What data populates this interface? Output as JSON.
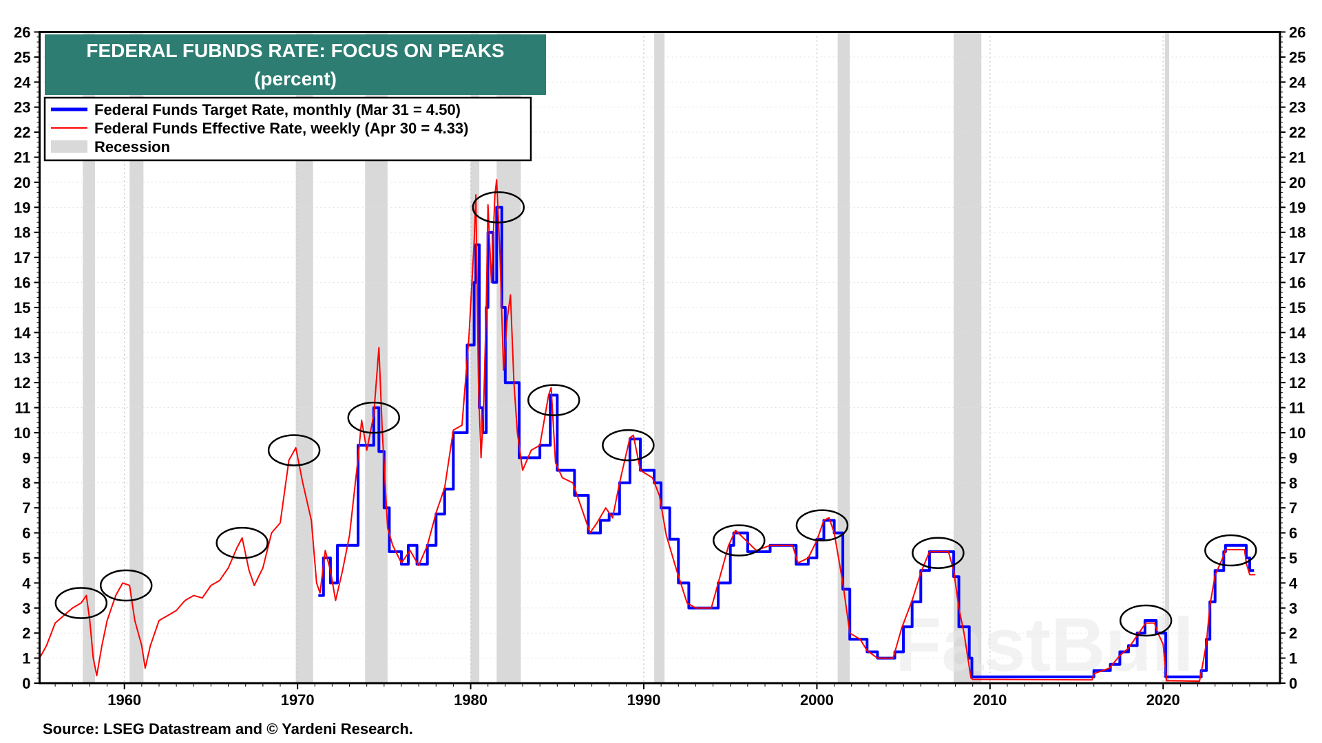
{
  "chart_data": {
    "type": "line",
    "title": "FEDERAL FUBNDS RATE: FOCUS ON PEAKS",
    "subtitle": "(percent)",
    "xlabel": "",
    "ylabel": "",
    "xlim": [
      1955.1,
      2026.75
    ],
    "ylim": [
      0,
      26
    ],
    "x_ticks": [
      1960,
      1970,
      1980,
      1990,
      2000,
      2010,
      2020
    ],
    "y_ticks": [
      0,
      1,
      2,
      3,
      4,
      5,
      6,
      7,
      8,
      9,
      10,
      11,
      12,
      13,
      14,
      15,
      16,
      17,
      18,
      19,
      20,
      21,
      22,
      23,
      24,
      25,
      26
    ],
    "y_axis_sides": "both",
    "grid": true,
    "legend_placement": "top-left",
    "source": "Source: LSEG Datastream and © Yardeni Research.",
    "watermark": "FastBull",
    "colors": {
      "target": "#0000ff",
      "effective": "#ff0000",
      "recession": "#d9d9d9",
      "title_bg": "#2e7d72",
      "circle": "#000000"
    },
    "recession_label": "Recession",
    "recessions": [
      [
        1957.6,
        1958.3
      ],
      [
        1960.3,
        1961.1
      ],
      [
        1969.9,
        1970.9
      ],
      [
        1973.9,
        1975.2
      ],
      [
        1980.0,
        1980.5
      ],
      [
        1981.5,
        1982.9
      ],
      [
        1990.6,
        1991.2
      ],
      [
        2001.2,
        2001.9
      ],
      [
        2007.9,
        2009.5
      ],
      [
        2020.1,
        2020.35
      ]
    ],
    "peaks_circled": [
      [
        1957.5,
        3.2
      ],
      [
        1960.1,
        3.9
      ],
      [
        1966.8,
        5.6
      ],
      [
        1969.8,
        9.3
      ],
      [
        1974.4,
        10.6
      ],
      [
        1981.6,
        19.0
      ],
      [
        1984.8,
        11.3
      ],
      [
        1989.1,
        9.5
      ],
      [
        1995.5,
        5.7
      ],
      [
        2000.3,
        6.3
      ],
      [
        2007.0,
        5.2
      ],
      [
        2019.0,
        2.5
      ],
      [
        2023.9,
        5.3
      ]
    ],
    "series": [
      {
        "name": "Federal Funds Effective Rate, weekly (Apr 30 = 4.33)",
        "key": "effective",
        "points": [
          [
            1955.1,
            1.0
          ],
          [
            1955.5,
            1.5
          ],
          [
            1956,
            2.4
          ],
          [
            1956.5,
            2.7
          ],
          [
            1957,
            3.0
          ],
          [
            1957.5,
            3.2
          ],
          [
            1957.8,
            3.5
          ],
          [
            1958.0,
            2.5
          ],
          [
            1958.2,
            1.0
          ],
          [
            1958.4,
            0.3
          ],
          [
            1958.7,
            1.5
          ],
          [
            1959,
            2.5
          ],
          [
            1959.5,
            3.5
          ],
          [
            1959.9,
            4.0
          ],
          [
            1960.3,
            3.9
          ],
          [
            1960.6,
            2.5
          ],
          [
            1961,
            1.5
          ],
          [
            1961.2,
            0.6
          ],
          [
            1961.5,
            1.5
          ],
          [
            1962,
            2.5
          ],
          [
            1962.5,
            2.7
          ],
          [
            1963,
            2.9
          ],
          [
            1963.5,
            3.3
          ],
          [
            1964,
            3.5
          ],
          [
            1964.5,
            3.4
          ],
          [
            1965,
            3.9
          ],
          [
            1965.5,
            4.1
          ],
          [
            1966,
            4.6
          ],
          [
            1966.5,
            5.4
          ],
          [
            1966.8,
            5.8
          ],
          [
            1967.2,
            4.5
          ],
          [
            1967.5,
            3.9
          ],
          [
            1968,
            4.6
          ],
          [
            1968.5,
            6.0
          ],
          [
            1969,
            6.4
          ],
          [
            1969.5,
            8.9
          ],
          [
            1969.9,
            9.4
          ],
          [
            1970.3,
            8.0
          ],
          [
            1970.8,
            6.5
          ],
          [
            1971.1,
            4.0
          ],
          [
            1971.3,
            3.6
          ],
          [
            1971.6,
            5.3
          ],
          [
            1971.9,
            4.5
          ],
          [
            1972.2,
            3.3
          ],
          [
            1972.6,
            4.5
          ],
          [
            1973,
            5.9
          ],
          [
            1973.5,
            9.0
          ],
          [
            1973.7,
            10.5
          ],
          [
            1974,
            9.3
          ],
          [
            1974.4,
            10.7
          ],
          [
            1974.6,
            12.5
          ],
          [
            1974.7,
            13.4
          ],
          [
            1974.9,
            10.0
          ],
          [
            1975.2,
            6.2
          ],
          [
            1975.5,
            5.5
          ],
          [
            1976,
            4.8
          ],
          [
            1976.5,
            5.3
          ],
          [
            1977,
            4.7
          ],
          [
            1977.5,
            5.5
          ],
          [
            1978,
            6.8
          ],
          [
            1978.5,
            7.8
          ],
          [
            1979,
            10.1
          ],
          [
            1979.5,
            10.3
          ],
          [
            1979.9,
            13.8
          ],
          [
            1980.2,
            17.6
          ],
          [
            1980.3,
            19.5
          ],
          [
            1980.45,
            12.0
          ],
          [
            1980.6,
            9.0
          ],
          [
            1980.75,
            11.0
          ],
          [
            1980.9,
            15.0
          ],
          [
            1981.0,
            19.1
          ],
          [
            1981.2,
            16.0
          ],
          [
            1981.4,
            19.5
          ],
          [
            1981.5,
            20.1
          ],
          [
            1981.7,
            17.0
          ],
          [
            1981.9,
            12.5
          ],
          [
            1982.1,
            14.5
          ],
          [
            1982.3,
            15.5
          ],
          [
            1982.5,
            12.0
          ],
          [
            1982.7,
            10.0
          ],
          [
            1982.9,
            9.0
          ],
          [
            1983,
            8.5
          ],
          [
            1983.5,
            9.3
          ],
          [
            1984,
            9.5
          ],
          [
            1984.5,
            11.5
          ],
          [
            1984.65,
            11.8
          ],
          [
            1984.9,
            8.8
          ],
          [
            1985.3,
            8.2
          ],
          [
            1985.9,
            8.0
          ],
          [
            1986.5,
            6.8
          ],
          [
            1986.9,
            6.0
          ],
          [
            1987.3,
            6.4
          ],
          [
            1987.8,
            7.0
          ],
          [
            1988.2,
            6.6
          ],
          [
            1988.6,
            8.0
          ],
          [
            1989.2,
            9.8
          ],
          [
            1989.4,
            9.9
          ],
          [
            1989.8,
            8.5
          ],
          [
            1990.5,
            8.2
          ],
          [
            1990.9,
            7.5
          ],
          [
            1991.3,
            5.9
          ],
          [
            1991.9,
            4.5
          ],
          [
            1992.5,
            3.2
          ],
          [
            1993,
            3.0
          ],
          [
            1993.9,
            3.0
          ],
          [
            1994.3,
            4.0
          ],
          [
            1994.9,
            5.5
          ],
          [
            1995.3,
            6.1
          ],
          [
            1995.9,
            5.7
          ],
          [
            1996.5,
            5.3
          ],
          [
            1997.3,
            5.5
          ],
          [
            1998.6,
            5.5
          ],
          [
            1998.9,
            4.8
          ],
          [
            1999.5,
            5.0
          ],
          [
            2000,
            5.7
          ],
          [
            2000.4,
            6.5
          ],
          [
            2000.7,
            6.6
          ],
          [
            2001.0,
            6.0
          ],
          [
            2001.5,
            4.0
          ],
          [
            2001.9,
            2.0
          ],
          [
            2002.5,
            1.75
          ],
          [
            2002.9,
            1.3
          ],
          [
            2003.5,
            1.0
          ],
          [
            2004.4,
            1.0
          ],
          [
            2004.9,
            2.2
          ],
          [
            2005.5,
            3.3
          ],
          [
            2006,
            4.4
          ],
          [
            2006.5,
            5.25
          ],
          [
            2007.6,
            5.25
          ],
          [
            2007.9,
            4.5
          ],
          [
            2008.2,
            3.0
          ],
          [
            2008.5,
            2.0
          ],
          [
            2008.9,
            0.2
          ],
          [
            2009,
            0.15
          ],
          [
            2015.9,
            0.13
          ],
          [
            2016.0,
            0.38
          ],
          [
            2016.9,
            0.6
          ],
          [
            2017.5,
            1.1
          ],
          [
            2018,
            1.4
          ],
          [
            2018.5,
            1.9
          ],
          [
            2019,
            2.4
          ],
          [
            2019.5,
            2.4
          ],
          [
            2019.7,
            2.0
          ],
          [
            2020,
            1.55
          ],
          [
            2020.2,
            0.1
          ],
          [
            2022.1,
            0.08
          ],
          [
            2022.3,
            0.8
          ],
          [
            2022.5,
            1.6
          ],
          [
            2022.7,
            3.1
          ],
          [
            2023,
            4.3
          ],
          [
            2023.5,
            5.1
          ],
          [
            2023.6,
            5.33
          ],
          [
            2024.7,
            5.33
          ],
          [
            2024.8,
            4.8
          ],
          [
            2025,
            4.33
          ],
          [
            2025.33,
            4.33
          ]
        ]
      },
      {
        "name": "Federal Funds Target Rate, monthly (Mar 31 = 4.50)",
        "key": "target",
        "points": [
          [
            1971.2,
            3.5
          ],
          [
            1971.5,
            5.0
          ],
          [
            1971.9,
            4.0
          ],
          [
            1972.3,
            5.5
          ],
          [
            1973.0,
            5.5
          ],
          [
            1973.5,
            9.5
          ],
          [
            1974.0,
            9.5
          ],
          [
            1974.4,
            11.0
          ],
          [
            1974.7,
            9.25
          ],
          [
            1975.0,
            7.0
          ],
          [
            1975.3,
            5.25
          ],
          [
            1976.0,
            4.75
          ],
          [
            1976.4,
            5.5
          ],
          [
            1976.9,
            4.75
          ],
          [
            1977.5,
            5.5
          ],
          [
            1978.0,
            6.75
          ],
          [
            1978.5,
            7.75
          ],
          [
            1979.0,
            10.0
          ],
          [
            1979.8,
            13.5
          ],
          [
            1980.2,
            16.0
          ],
          [
            1980.3,
            17.5
          ],
          [
            1980.5,
            11.0
          ],
          [
            1980.7,
            10.0
          ],
          [
            1980.9,
            15.0
          ],
          [
            1981.0,
            18.0
          ],
          [
            1981.3,
            16.0
          ],
          [
            1981.5,
            19.0
          ],
          [
            1981.8,
            15.0
          ],
          [
            1982.0,
            12.0
          ],
          [
            1982.5,
            12.0
          ],
          [
            1982.8,
            9.0
          ],
          [
            1983.5,
            9.0
          ],
          [
            1984.0,
            9.5
          ],
          [
            1984.6,
            11.5
          ],
          [
            1985.0,
            8.5
          ],
          [
            1986.0,
            7.5
          ],
          [
            1986.8,
            6.0
          ],
          [
            1987.5,
            6.5
          ],
          [
            1988.0,
            6.75
          ],
          [
            1988.6,
            8.0
          ],
          [
            1989.2,
            9.75
          ],
          [
            1989.8,
            8.5
          ],
          [
            1990.6,
            8.0
          ],
          [
            1991.0,
            7.0
          ],
          [
            1991.5,
            5.75
          ],
          [
            1992.0,
            4.0
          ],
          [
            1992.6,
            3.0
          ],
          [
            1994.0,
            3.0
          ],
          [
            1994.3,
            4.0
          ],
          [
            1995.0,
            5.5
          ],
          [
            1995.2,
            6.0
          ],
          [
            1996.0,
            5.25
          ],
          [
            1997.3,
            5.5
          ],
          [
            1998.8,
            4.75
          ],
          [
            1999.5,
            5.0
          ],
          [
            2000.0,
            5.75
          ],
          [
            2000.4,
            6.5
          ],
          [
            2001.0,
            6.0
          ],
          [
            2001.5,
            3.75
          ],
          [
            2001.9,
            1.75
          ],
          [
            2002.9,
            1.25
          ],
          [
            2003.5,
            1.0
          ],
          [
            2004.5,
            1.25
          ],
          [
            2005.0,
            2.25
          ],
          [
            2005.5,
            3.25
          ],
          [
            2006.0,
            4.5
          ],
          [
            2006.5,
            5.25
          ],
          [
            2007.7,
            5.25
          ],
          [
            2007.9,
            4.25
          ],
          [
            2008.2,
            2.25
          ],
          [
            2008.8,
            1.0
          ],
          [
            2008.95,
            0.25
          ],
          [
            2016.0,
            0.5
          ],
          [
            2016.95,
            0.75
          ],
          [
            2017.5,
            1.25
          ],
          [
            2018.0,
            1.5
          ],
          [
            2018.5,
            2.0
          ],
          [
            2018.95,
            2.5
          ],
          [
            2019.6,
            2.0
          ],
          [
            2020.15,
            0.25
          ],
          [
            2022.2,
            0.5
          ],
          [
            2022.5,
            1.75
          ],
          [
            2022.7,
            3.25
          ],
          [
            2023.0,
            4.5
          ],
          [
            2023.5,
            5.25
          ],
          [
            2023.6,
            5.5
          ],
          [
            2024.7,
            5.5
          ],
          [
            2024.8,
            5.0
          ],
          [
            2025.0,
            4.5
          ],
          [
            2025.25,
            4.5
          ]
        ]
      }
    ]
  },
  "legend": {
    "target": "Federal Funds Target Rate, monthly (Mar 31 = 4.50)",
    "effective": "Federal Funds Effective Rate, weekly (Apr 30 = 4.33)",
    "recession": "Recession"
  }
}
